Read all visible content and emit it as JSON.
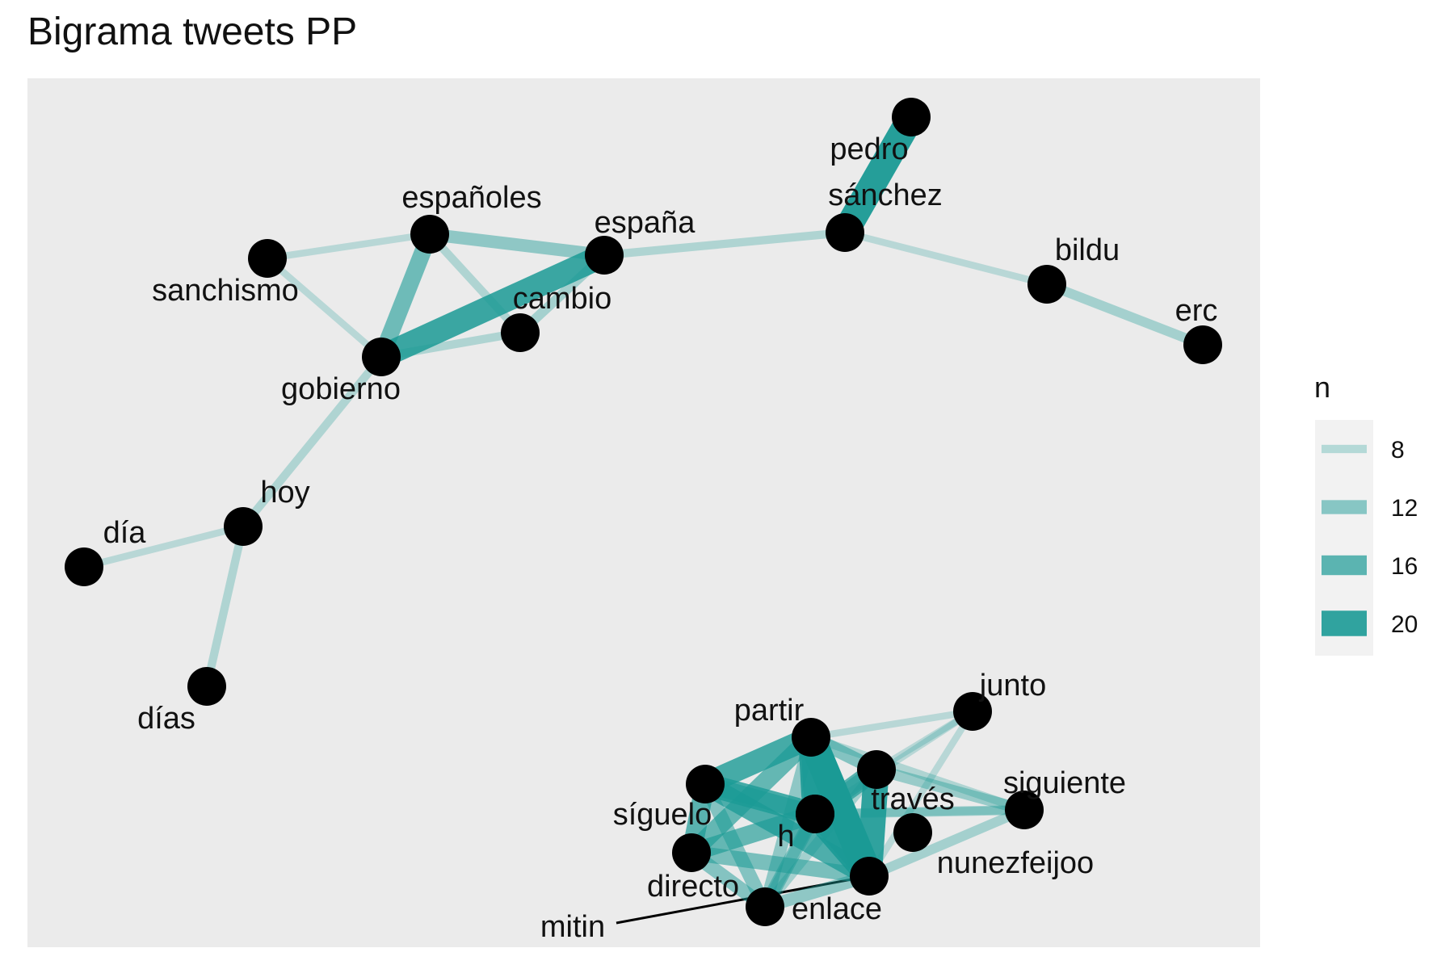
{
  "title": "Bigrama tweets PP",
  "colors": {
    "panel": "#ebebeb",
    "edge": "#1a9a95",
    "node": "#000000",
    "legend_bg": "#f2f2f2"
  },
  "nodes": [
    {
      "id": "pedro",
      "label": "pedro"
    },
    {
      "id": "sanchez",
      "label": "sánchez"
    },
    {
      "id": "espanoles",
      "label": "españoles"
    },
    {
      "id": "espana",
      "label": "españa"
    },
    {
      "id": "sanchismo",
      "label": "sanchismo"
    },
    {
      "id": "cambio",
      "label": "cambio"
    },
    {
      "id": "gobierno",
      "label": "gobierno"
    },
    {
      "id": "bildu",
      "label": "bildu"
    },
    {
      "id": "erc",
      "label": "erc"
    },
    {
      "id": "hoy",
      "label": "hoy"
    },
    {
      "id": "dia",
      "label": "día"
    },
    {
      "id": "dias",
      "label": "días"
    },
    {
      "id": "partir",
      "label": "partir"
    },
    {
      "id": "junto",
      "label": "junto"
    },
    {
      "id": "siguiente",
      "label": "siguiente"
    },
    {
      "id": "traves",
      "label": "través"
    },
    {
      "id": "h",
      "label": "h"
    },
    {
      "id": "siguelo",
      "label": "síguelo"
    },
    {
      "id": "nunezfeijoo",
      "label": "nunezfeijoo"
    },
    {
      "id": "directo",
      "label": "directo"
    },
    {
      "id": "enlace",
      "label": "enlace"
    },
    {
      "id": "mitin",
      "label": "mitin"
    },
    {
      "id": "unlabeled-a",
      "label": ""
    },
    {
      "id": "unlabeled-b",
      "label": ""
    }
  ],
  "edges": [
    {
      "from": "pedro",
      "to": "sanchez",
      "n": 21
    },
    {
      "from": "espana",
      "to": "gobierno",
      "n": 19
    },
    {
      "from": "espanoles",
      "to": "gobierno",
      "n": 14
    },
    {
      "from": "espanoles",
      "to": "espana",
      "n": 11
    },
    {
      "from": "cambio",
      "to": "espana",
      "n": 9
    },
    {
      "from": "cambio",
      "to": "gobierno",
      "n": 8
    },
    {
      "from": "espanoles",
      "to": "cambio",
      "n": 8
    },
    {
      "from": "sanchismo",
      "to": "espanoles",
      "n": 7
    },
    {
      "from": "sanchismo",
      "to": "gobierno",
      "n": 7
    },
    {
      "from": "espana",
      "to": "sanchez",
      "n": 8
    },
    {
      "from": "sanchez",
      "to": "bildu",
      "n": 7
    },
    {
      "from": "bildu",
      "to": "erc",
      "n": 9
    },
    {
      "from": "gobierno",
      "to": "hoy",
      "n": 8
    },
    {
      "from": "hoy",
      "to": "dia",
      "n": 7
    },
    {
      "from": "hoy",
      "to": "dias",
      "n": 8
    },
    {
      "from": "partir",
      "to": "enlace",
      "n": 22
    },
    {
      "from": "partir",
      "to": "h",
      "n": 20
    },
    {
      "from": "traves",
      "to": "enlace",
      "n": 20
    },
    {
      "from": "unlabeled-a",
      "to": "enlace",
      "n": 20
    },
    {
      "from": "partir",
      "to": "unlabeled-b",
      "n": 18
    },
    {
      "from": "unlabeled-b",
      "to": "h",
      "n": 18
    },
    {
      "from": "unlabeled-b",
      "to": "siguelo",
      "n": 16
    },
    {
      "from": "unlabeled-b",
      "to": "enlace",
      "n": 17
    },
    {
      "from": "h",
      "to": "siguelo",
      "n": 15
    },
    {
      "from": "h",
      "to": "enlace",
      "n": 16
    },
    {
      "from": "partir",
      "to": "siguelo",
      "n": 15
    },
    {
      "from": "partir",
      "to": "unlabeled-a",
      "n": 17
    },
    {
      "from": "unlabeled-a",
      "to": "traves",
      "n": 16
    },
    {
      "from": "unlabeled-b",
      "to": "unlabeled-a",
      "n": 14
    },
    {
      "from": "h",
      "to": "unlabeled-a",
      "n": 14
    },
    {
      "from": "h",
      "to": "traves",
      "n": 13
    },
    {
      "from": "siguelo",
      "to": "enlace",
      "n": 13
    },
    {
      "from": "siguelo",
      "to": "directo",
      "n": 12
    },
    {
      "from": "directo",
      "to": "enlace",
      "n": 11
    },
    {
      "from": "unlabeled-b",
      "to": "directo",
      "n": 12
    },
    {
      "from": "partir",
      "to": "directo",
      "n": 11
    },
    {
      "from": "h",
      "to": "directo",
      "n": 12
    },
    {
      "from": "unlabeled-a",
      "to": "directo",
      "n": 10
    },
    {
      "from": "traves",
      "to": "directo",
      "n": 9
    },
    {
      "from": "partir",
      "to": "traves",
      "n": 12
    },
    {
      "from": "traves",
      "to": "siguiente",
      "n": 10
    },
    {
      "from": "unlabeled-a",
      "to": "siguiente",
      "n": 9
    },
    {
      "from": "partir",
      "to": "siguiente",
      "n": 8
    },
    {
      "from": "enlace",
      "to": "siguiente",
      "n": 9
    },
    {
      "from": "h",
      "to": "siguiente",
      "n": 8
    },
    {
      "from": "junto",
      "to": "traves",
      "n": 7
    },
    {
      "from": "junto",
      "to": "partir",
      "n": 7
    },
    {
      "from": "junto",
      "to": "enlace",
      "n": 7
    },
    {
      "from": "junto",
      "to": "unlabeled-a",
      "n": 7
    },
    {
      "from": "mitin",
      "to": "enlace",
      "n": 5,
      "black": true
    }
  ],
  "legend": {
    "title": "n",
    "entries": [
      {
        "label": "8",
        "n": 8
      },
      {
        "label": "12",
        "n": 12
      },
      {
        "label": "16",
        "n": 16
      },
      {
        "label": "20",
        "n": 20
      }
    ]
  }
}
